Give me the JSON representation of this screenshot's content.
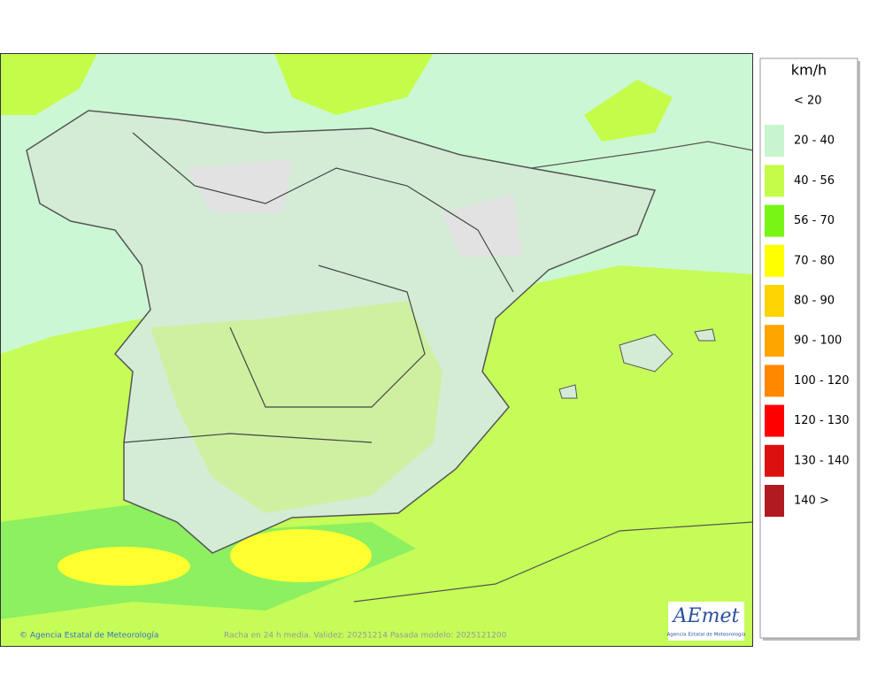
{
  "legend": {
    "title": "km/h",
    "items": [
      {
        "label": "< 20",
        "color": "#ffffff"
      },
      {
        "label": "20 - 40",
        "color": "#c8f5cf"
      },
      {
        "label": "40 - 56",
        "color": "#c4fc4a"
      },
      {
        "label": "56 - 70",
        "color": "#78f514"
      },
      {
        "label": "70 - 80",
        "color": "#ffff00"
      },
      {
        "label": "80 - 90",
        "color": "#ffd400"
      },
      {
        "label": "90 - 100",
        "color": "#ffa500"
      },
      {
        "label": "100 - 120",
        "color": "#ff8800"
      },
      {
        "label": "120 - 130",
        "color": "#ff0000"
      },
      {
        "label": "130 - 140",
        "color": "#dd1010"
      },
      {
        "label": "140 >",
        "color": "#b01a20"
      }
    ]
  },
  "footer": {
    "credit": "© Agencia Estatal de Meteorología",
    "caption": "Racha en 24 h media. Validez: 20251214 Pasada modelo: 2025121200"
  },
  "logo": {
    "name": "AEmet",
    "subtitle": "Agencia Estatal de Meteorología"
  }
}
